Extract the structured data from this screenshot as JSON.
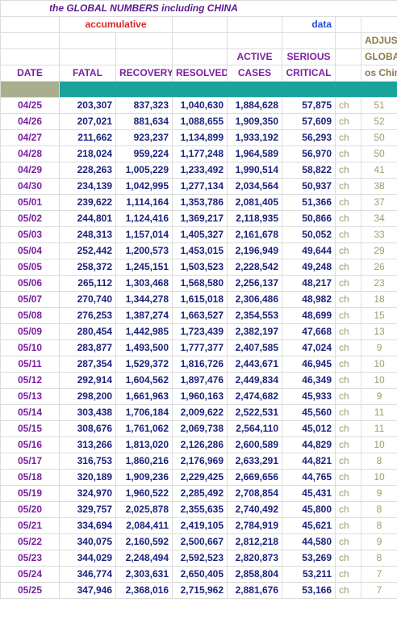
{
  "title": "the GLOBAL NUMBERS including CHINA",
  "subtitle_left": "accumulative",
  "subtitle_right": "data",
  "headers": {
    "date": "DATE",
    "fatal": "FATAL",
    "recovery": "RECOVERY",
    "resolved": "RESOLVED",
    "active_top": "ACTIVE",
    "active_bottom": "CASES",
    "serious_top": "SERIOUS",
    "serious_bottom": "CRITICAL",
    "adjust_1": "ADJUST",
    "adjust_2": "GLOBAL",
    "adjust_3": "os China"
  },
  "colors": {
    "title": "#5b1a8f",
    "accumulative": "#d62828",
    "data_label": "#1f4ed8",
    "date": "#7b1fa2",
    "numbers": "#1a237e",
    "ch": "#a39b6f",
    "bar_olive": "#a9ae8d",
    "bar_teal": "#1aa39a"
  },
  "rows": [
    {
      "date": "04/25",
      "fatal": "203,307",
      "recovery": "837,323",
      "resolved": "1,040,630",
      "active": "1,884,628",
      "serious": "57,875",
      "ch": "ch",
      "adj": "51"
    },
    {
      "date": "04/26",
      "fatal": "207,021",
      "recovery": "881,634",
      "resolved": "1,088,655",
      "active": "1,909,350",
      "serious": "57,609",
      "ch": "ch",
      "adj": "52"
    },
    {
      "date": "04/27",
      "fatal": "211,662",
      "recovery": "923,237",
      "resolved": "1,134,899",
      "active": "1,933,192",
      "serious": "56,293",
      "ch": "ch",
      "adj": "50"
    },
    {
      "date": "04/28",
      "fatal": "218,024",
      "recovery": "959,224",
      "resolved": "1,177,248",
      "active": "1,964,589",
      "serious": "56,970",
      "ch": "ch",
      "adj": "50"
    },
    {
      "date": "04/29",
      "fatal": "228,263",
      "recovery": "1,005,229",
      "resolved": "1,233,492",
      "active": "1,990,514",
      "serious": "58,822",
      "ch": "ch",
      "adj": "41"
    },
    {
      "date": "04/30",
      "fatal": "234,139",
      "recovery": "1,042,995",
      "resolved": "1,277,134",
      "active": "2,034,564",
      "serious": "50,937",
      "ch": "ch",
      "adj": "38"
    },
    {
      "date": "05/01",
      "fatal": "239,622",
      "recovery": "1,114,164",
      "resolved": "1,353,786",
      "active": "2,081,405",
      "serious": "51,366",
      "ch": "ch",
      "adj": "37"
    },
    {
      "date": "05/02",
      "fatal": "244,801",
      "recovery": "1,124,416",
      "resolved": "1,369,217",
      "active": "2,118,935",
      "serious": "50,866",
      "ch": "ch",
      "adj": "34"
    },
    {
      "date": "05/03",
      "fatal": "248,313",
      "recovery": "1,157,014",
      "resolved": "1,405,327",
      "active": "2,161,678",
      "serious": "50,052",
      "ch": "ch",
      "adj": "33"
    },
    {
      "date": "05/04",
      "fatal": "252,442",
      "recovery": "1,200,573",
      "resolved": "1,453,015",
      "active": "2,196,949",
      "serious": "49,644",
      "ch": "ch",
      "adj": "29"
    },
    {
      "date": "05/05",
      "fatal": "258,372",
      "recovery": "1,245,151",
      "resolved": "1,503,523",
      "active": "2,228,542",
      "serious": "49,248",
      "ch": "ch",
      "adj": "26"
    },
    {
      "date": "05/06",
      "fatal": "265,112",
      "recovery": "1,303,468",
      "resolved": "1,568,580",
      "active": "2,256,137",
      "serious": "48,217",
      "ch": "ch",
      "adj": "23"
    },
    {
      "date": "05/07",
      "fatal": "270,740",
      "recovery": "1,344,278",
      "resolved": "1,615,018",
      "active": "2,306,486",
      "serious": "48,982",
      "ch": "ch",
      "adj": "18"
    },
    {
      "date": "05/08",
      "fatal": "276,253",
      "recovery": "1,387,274",
      "resolved": "1,663,527",
      "active": "2,354,553",
      "serious": "48,699",
      "ch": "ch",
      "adj": "15"
    },
    {
      "date": "05/09",
      "fatal": "280,454",
      "recovery": "1,442,985",
      "resolved": "1,723,439",
      "active": "2,382,197",
      "serious": "47,668",
      "ch": "ch",
      "adj": "13"
    },
    {
      "date": "05/10",
      "fatal": "283,877",
      "recovery": "1,493,500",
      "resolved": "1,777,377",
      "active": "2,407,585",
      "serious": "47,024",
      "ch": "ch",
      "adj": "9"
    },
    {
      "date": "05/11",
      "fatal": "287,354",
      "recovery": "1,529,372",
      "resolved": "1,816,726",
      "active": "2,443,671",
      "serious": "46,945",
      "ch": "ch",
      "adj": "10"
    },
    {
      "date": "05/12",
      "fatal": "292,914",
      "recovery": "1,604,562",
      "resolved": "1,897,476",
      "active": "2,449,834",
      "serious": "46,349",
      "ch": "ch",
      "adj": "10"
    },
    {
      "date": "05/13",
      "fatal": "298,200",
      "recovery": "1,661,963",
      "resolved": "1,960,163",
      "active": "2,474,682",
      "serious": "45,933",
      "ch": "ch",
      "adj": "9"
    },
    {
      "date": "05/14",
      "fatal": "303,438",
      "recovery": "1,706,184",
      "resolved": "2,009,622",
      "active": "2,522,531",
      "serious": "45,560",
      "ch": "ch",
      "adj": "11"
    },
    {
      "date": "05/15",
      "fatal": "308,676",
      "recovery": "1,761,062",
      "resolved": "2,069,738",
      "active": "2,564,110",
      "serious": "45,012",
      "ch": "ch",
      "adj": "11"
    },
    {
      "date": "05/16",
      "fatal": "313,266",
      "recovery": "1,813,020",
      "resolved": "2,126,286",
      "active": "2,600,589",
      "serious": "44,829",
      "ch": "ch",
      "adj": "10"
    },
    {
      "date": "05/17",
      "fatal": "316,753",
      "recovery": "1,860,216",
      "resolved": "2,176,969",
      "active": "2,633,291",
      "serious": "44,821",
      "ch": "ch",
      "adj": "8"
    },
    {
      "date": "05/18",
      "fatal": "320,189",
      "recovery": "1,909,236",
      "resolved": "2,229,425",
      "active": "2,669,656",
      "serious": "44,765",
      "ch": "ch",
      "adj": "10"
    },
    {
      "date": "05/19",
      "fatal": "324,970",
      "recovery": "1,960,522",
      "resolved": "2,285,492",
      "active": "2,708,854",
      "serious": "45,431",
      "ch": "ch",
      "adj": "9"
    },
    {
      "date": "05/20",
      "fatal": "329,757",
      "recovery": "2,025,878",
      "resolved": "2,355,635",
      "active": "2,740,492",
      "serious": "45,800",
      "ch": "ch",
      "adj": "8"
    },
    {
      "date": "05/21",
      "fatal": "334,694",
      "recovery": "2,084,411",
      "resolved": "2,419,105",
      "active": "2,784,919",
      "serious": "45,621",
      "ch": "ch",
      "adj": "8"
    },
    {
      "date": "05/22",
      "fatal": "340,075",
      "recovery": "2,160,592",
      "resolved": "2,500,667",
      "active": "2,812,218",
      "serious": "44,580",
      "ch": "ch",
      "adj": "9"
    },
    {
      "date": "05/23",
      "fatal": "344,029",
      "recovery": "2,248,494",
      "resolved": "2,592,523",
      "active": "2,820,873",
      "serious": "53,269",
      "ch": "ch",
      "adj": "8"
    },
    {
      "date": "05/24",
      "fatal": "346,774",
      "recovery": "2,303,631",
      "resolved": "2,650,405",
      "active": "2,858,804",
      "serious": "53,211",
      "ch": "ch",
      "adj": "7"
    },
    {
      "date": "05/25",
      "fatal": "347,946",
      "recovery": "2,368,016",
      "resolved": "2,715,962",
      "active": "2,881,676",
      "serious": "53,166",
      "ch": "ch",
      "adj": "7"
    }
  ]
}
